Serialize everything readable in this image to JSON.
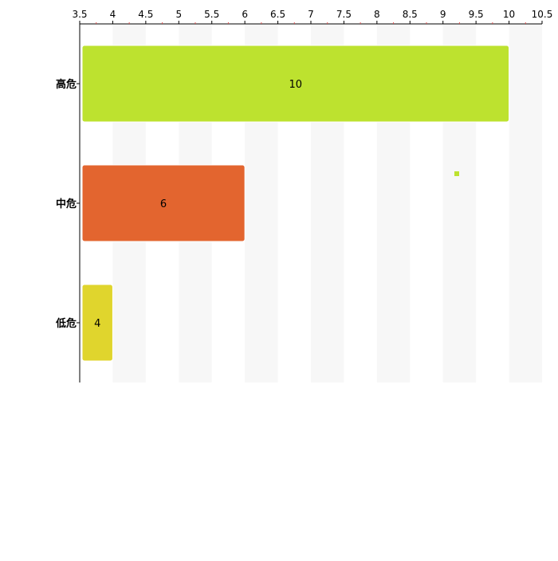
{
  "chart_data": {
    "type": "bar",
    "orientation": "horizontal",
    "categories": [
      "高危",
      "中危",
      "低危"
    ],
    "values": [
      10,
      6,
      4
    ],
    "colors": [
      "#bde22f",
      "#e3652f",
      "#e0d52d"
    ],
    "xlim": [
      3.5,
      10.5
    ],
    "x_ticks": [
      "3.5",
      "4",
      "4.5",
      "5",
      "5.5",
      "6",
      "6.5",
      "7",
      "7.5",
      "8",
      "8.5",
      "9",
      "9.5",
      "10",
      "10.5"
    ],
    "x_axis_position": "top",
    "data_labels": [
      "10",
      "6",
      "4"
    ],
    "grid": "alternating vertical bands",
    "band_color": "#f7f7f7",
    "title": "",
    "xlabel": "",
    "ylabel": "",
    "legend_marker_color": "#bde22f"
  }
}
